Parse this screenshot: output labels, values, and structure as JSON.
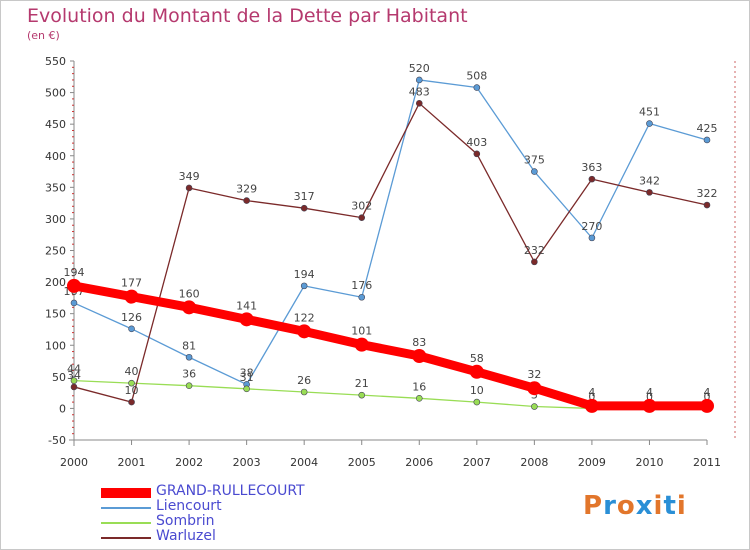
{
  "header": {
    "title": "Evolution du Montant de la Dette par Habitant",
    "unit": "(en €)"
  },
  "logo": {
    "text": "Proxiti",
    "colors": [
      "#e2762b",
      "#2a8fd6",
      "#e2762b",
      "#2a8fd6",
      "#e2762b",
      "#2a8fd6",
      "#e2762b"
    ]
  },
  "chart_data": {
    "type": "line",
    "x": [
      "2000",
      "2001",
      "2002",
      "2003",
      "2004",
      "2005",
      "2006",
      "2007",
      "2008",
      "2009",
      "2010",
      "2011"
    ],
    "ylim": [
      -50,
      550
    ],
    "yticks": [
      -50,
      0,
      50,
      100,
      150,
      200,
      250,
      300,
      350,
      400,
      450,
      500,
      550
    ],
    "grid": false,
    "legend_position": "bottom-left",
    "series": [
      {
        "name": "Liencourt",
        "color": "#5b9bd5",
        "values": [
          167,
          126,
          81,
          38,
          194,
          176,
          520,
          508,
          375,
          270,
          451,
          425
        ]
      },
      {
        "name": "Sombrin",
        "color": "#99dd55",
        "values": [
          44,
          40,
          36,
          31,
          26,
          21,
          16,
          10,
          3,
          0,
          0,
          0
        ]
      },
      {
        "name": "Warluzel",
        "color": "#7b2a2a",
        "values": [
          34,
          10,
          349,
          329,
          317,
          302,
          483,
          403,
          232,
          363,
          342,
          322
        ]
      },
      {
        "name": "GRAND-RULLECOURT",
        "color": "#ff0000",
        "values": [
          194,
          177,
          160,
          141,
          122,
          101,
          83,
          58,
          32,
          4,
          4,
          4
        ]
      }
    ]
  }
}
